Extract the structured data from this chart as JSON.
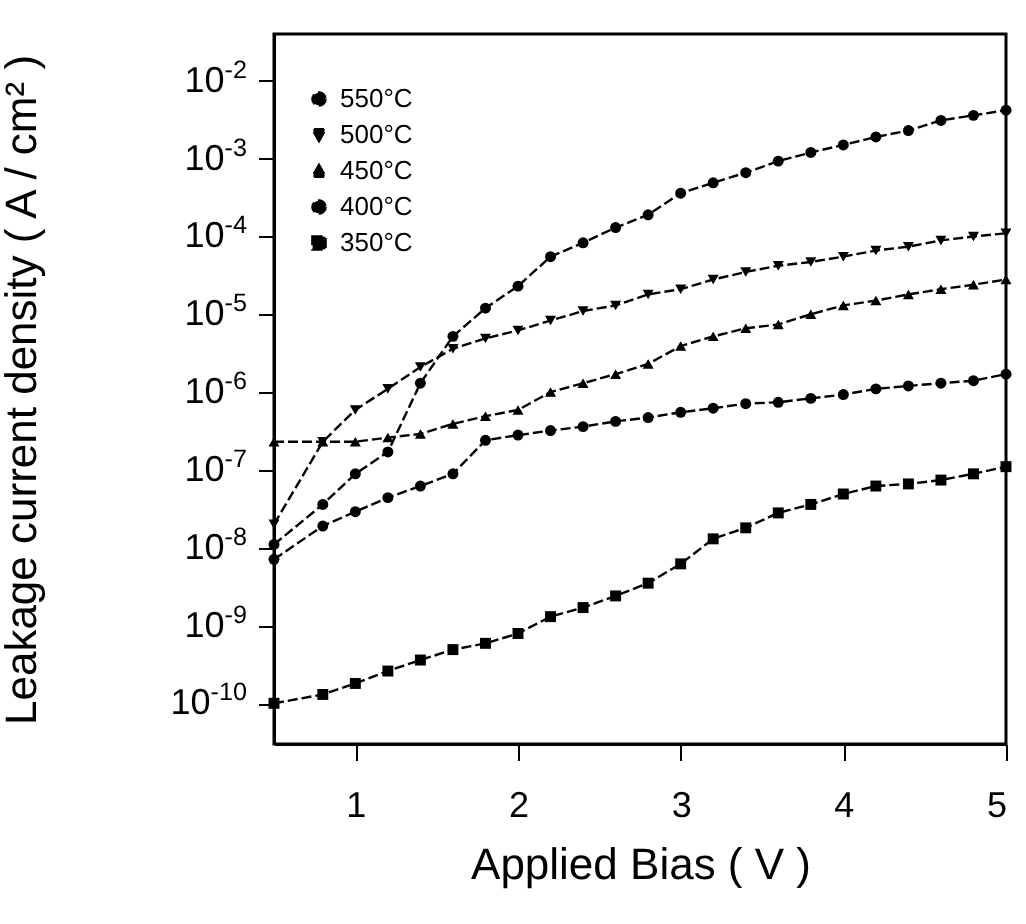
{
  "chart_data": {
    "type": "line",
    "xlabel": "Applied Bias ( V )",
    "ylabel": "Leakage current density ( A / cm² )",
    "x": [
      0.5,
      0.8,
      1.0,
      1.2,
      1.4,
      1.6,
      1.8,
      2.0,
      2.2,
      2.4,
      2.6,
      2.8,
      3.0,
      3.2,
      3.4,
      3.6,
      3.8,
      4.0,
      4.2,
      4.4,
      4.6,
      4.8,
      5.0
    ],
    "series": [
      {
        "name": "550°C",
        "color": "#000000",
        "marker": "circle",
        "line_style": "dashed",
        "values": [
          1.1e-08,
          3.6e-08,
          8.9e-08,
          1.7e-07,
          1.3e-06,
          5.2e-06,
          1.2e-05,
          2.3e-05,
          5.5e-05,
          8.3e-05,
          0.00013,
          0.00019,
          0.00036,
          0.00049,
          0.00066,
          0.00093,
          0.0012,
          0.0015,
          0.0019,
          0.0023,
          0.0031,
          0.0036,
          0.0042
        ]
      },
      {
        "name": "500°C",
        "color": "#000000",
        "marker": "triangle-down",
        "line_style": "dashed",
        "values": [
          2e-08,
          2.3e-07,
          5.9e-07,
          1.1e-06,
          2.1e-06,
          3.6e-06,
          4.9e-06,
          6.2e-06,
          8.3e-06,
          1.1e-05,
          1.3e-05,
          1.8e-05,
          2.1e-05,
          2.8e-05,
          3.5e-05,
          4.2e-05,
          4.7e-05,
          5.5e-05,
          6.6e-05,
          7.4e-05,
          8.9e-05,
          0.0001,
          0.00011
        ]
      },
      {
        "name": "450°C",
        "color": "#000000",
        "marker": "triangle",
        "line_style": "dashed",
        "values": [
          2.3e-07,
          2.3e-07,
          2.3e-07,
          2.6e-07,
          2.9e-07,
          3.9e-07,
          4.9e-07,
          5.9e-07,
          1e-06,
          1.3e-06,
          1.7e-06,
          2.3e-06,
          3.9e-06,
          5.2e-06,
          6.6e-06,
          7.4e-06,
          1e-05,
          1.3e-05,
          1.5e-05,
          1.8e-05,
          2.1e-05,
          2.4e-05,
          2.8e-05
        ]
      },
      {
        "name": "400°C",
        "color": "#000000",
        "marker": "circle",
        "line_style": "dashed",
        "values": [
          7.1e-09,
          1.9e-08,
          2.9e-08,
          4.4e-08,
          6.2e-08,
          8.9e-08,
          2.4e-07,
          2.8e-07,
          3.2e-07,
          3.6e-07,
          4.2e-07,
          4.7e-07,
          5.5e-07,
          6.2e-07,
          7.1e-07,
          7.4e-07,
          8.3e-07,
          9.3e-07,
          1.1e-06,
          1.2e-06,
          1.3e-06,
          1.4e-06,
          1.7e-06
        ]
      },
      {
        "name": "350°C",
        "color": "#000000",
        "marker": "square",
        "line_style": "dashed",
        "values": [
          1e-10,
          1.3e-10,
          1.8e-10,
          2.6e-10,
          3.6e-10,
          4.9e-10,
          5.9e-10,
          7.9e-10,
          1.3e-09,
          1.7e-09,
          2.4e-09,
          3.5e-09,
          6.2e-09,
          1.3e-08,
          1.8e-08,
          2.8e-08,
          3.6e-08,
          4.9e-08,
          6.2e-08,
          6.6e-08,
          7.4e-08,
          8.9e-08,
          1.1e-07
        ]
      }
    ],
    "xlim": [
      0.5,
      5.0
    ],
    "xticks": [
      1,
      2,
      3,
      4,
      5
    ],
    "ylim": [
      3e-11,
      0.04
    ],
    "yticks": [
      {
        "value": 1e-10,
        "label": "10$^{-10}$"
      },
      {
        "value": 1e-09,
        "label": "10$^{-9}$"
      },
      {
        "value": 1e-08,
        "label": "10$^{-8}$"
      },
      {
        "value": 1e-07,
        "label": "10$^{-7}$"
      },
      {
        "value": 1e-06,
        "label": "10$^{-6}$"
      },
      {
        "value": 1e-05,
        "label": "10$^{-5}$"
      },
      {
        "value": 0.0001,
        "label": "10$^{-4}$"
      },
      {
        "value": 0.001,
        "label": "10$^{-3}$"
      },
      {
        "value": 0.01,
        "label": "10$^{-2}$"
      }
    ],
    "log": true,
    "grid": false,
    "legend": "top left"
  }
}
